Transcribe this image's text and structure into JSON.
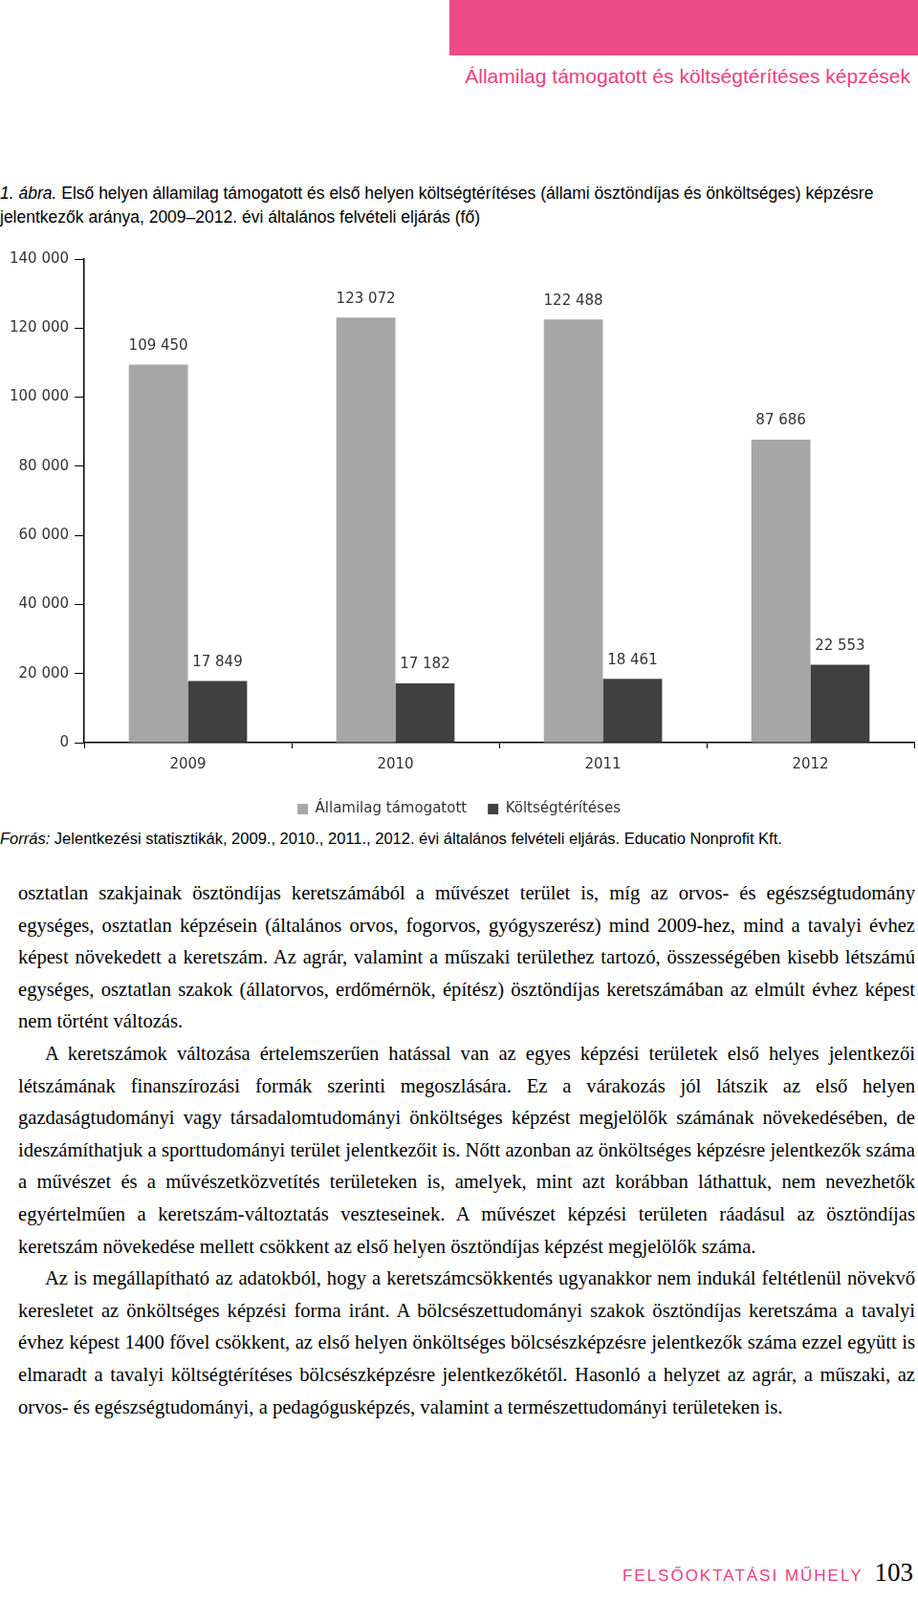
{
  "header": {
    "title": "Államilag támogatott és költségtérítéses képzések"
  },
  "figure": {
    "label": "1. ábra.",
    "caption": "Első helyen államilag támogatott és első helyen költségtérítéses (állami ösztöndíjas és önköltséges) képzésre jelentkezők aránya, 2009–2012. évi általános felvételi eljárás (fő)"
  },
  "chart_data": {
    "type": "bar",
    "categories": [
      "2009",
      "2010",
      "2011",
      "2012"
    ],
    "series": [
      {
        "name": "Államilag támogatott",
        "color": "#a6a6a6",
        "values": [
          109450,
          123072,
          122488,
          87686
        ],
        "value_labels": [
          "109 450",
          "123 072",
          "122 488",
          "87 686"
        ]
      },
      {
        "name": "Költségtérítéses",
        "color": "#404040",
        "values": [
          17849,
          17182,
          18461,
          22553
        ],
        "value_labels": [
          "17 849",
          "17 182",
          "18 461",
          "22 553"
        ]
      }
    ],
    "ylim": [
      0,
      140000
    ],
    "yticks": [
      0,
      {
        "value": 20000,
        "label": "20 000"
      },
      {
        "value": 40000,
        "label": "40 000"
      },
      {
        "value": 60000,
        "label": "60 000"
      },
      {
        "value": 80000,
        "label": "80 000"
      },
      {
        "value": 100000,
        "label": "100 000"
      },
      {
        "value": 120000,
        "label": "120 000"
      },
      {
        "value": 140000,
        "label": "140 000"
      }
    ],
    "grid": false,
    "legend": "bottom",
    "data_labels": true
  },
  "source": {
    "label": "Forrás:",
    "text": "Jelentkezési statisztikák, 2009., 2010., 2011., 2012. évi általános felvételi eljárás. Educatio Nonprofit Kft."
  },
  "body": {
    "paragraphs": [
      "osztatlan szakjainak ösztöndíjas keretszámából a művészet terület is, míg az orvos- és egészségtudomány egységes, osztatlan képzésein (általános orvos, fogorvos, gyógyszerész) mind 2009-hez, mind a tavalyi évhez képest növekedett a keretszám. Az agrár, valamint a műszaki területhez tartozó, összességében kisebb létszámú egységes, osztatlan szakok (állatorvos, erdőmérnök, építész) ösztöndíjas keretszámában az elmúlt évhez képest nem történt változás.",
      "A keretszámok változása értelemszerűen hatással van az egyes képzési területek első helyes jelentkezői létszámának finanszírozási formák szerinti megoszlására. Ez a várakozás jól látszik az első helyen gazdaságtudományi vagy társadalomtudományi önköltséges képzést megjelölők számának növekedésében, de ideszámíthatjuk a sporttudományi terület jelentkezőit is. Nőtt azonban az önköltséges képzésre jelentkezők száma a művészet és a művészetközvetítés területeken is, amelyek, mint azt korábban láthattuk, nem nevezhetők egyértelműen a keretszám-változtatás veszteseinek. A művészet képzési területen ráadásul az ösztöndíjas keretszám növekedése mellett csökkent az első helyen ösztöndíjas képzést megjelölők száma.",
      "Az is megállapítható az adatokból, hogy a keretszámcsökkentés ugyanakkor nem indukál feltétlenül növekvő keresletet az önköltséges képzési forma iránt. A bölcsészettudományi szakok ösztöndíjas keretszáma a tavalyi évhez képest 1400 fővel csökkent, az első helyen önköltséges bölcsészképzésre jelentkezők száma ezzel együtt is elmaradt a tavalyi költségtérítéses bölcsészképzésre jelentkezőkétől. Hasonló a helyzet az agrár, a műszaki, az orvos- és egészségtudományi, a pedagógusképzés, valamint a természettudományi területeken is."
    ]
  },
  "footer": {
    "journal": "FELSŐOKTATÁSI MŰHELY",
    "page": 103
  }
}
